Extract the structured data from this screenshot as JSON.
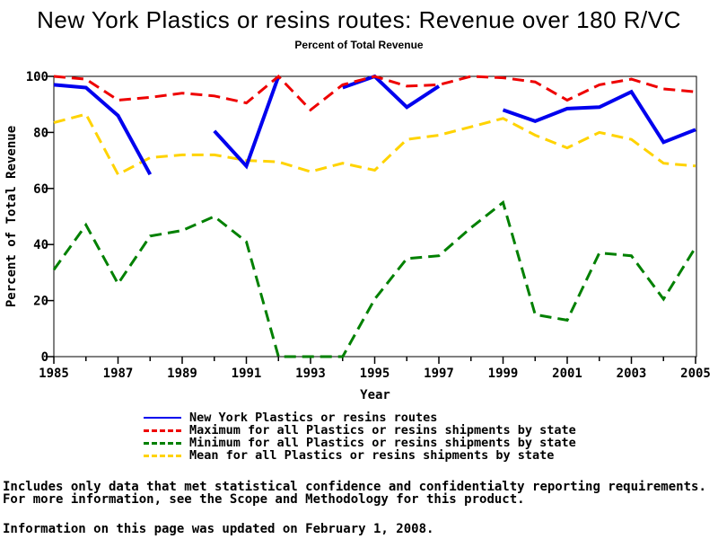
{
  "title": "New York Plastics or resins routes: Revenue over 180 R/VC",
  "subtitle": "Percent of Total Revenue",
  "footnotes": {
    "line1": "Includes only data that met statistical confidence and confidentialty reporting requirements.",
    "line2": "For more information, see the Scope and Methodology for this product.",
    "line3": "Information on this page was updated on February 1, 2008."
  },
  "legend": {
    "items": [
      {
        "label": "New York Plastics or resins routes",
        "color": "#0000EE",
        "style": "solid"
      },
      {
        "label": "Maximum for all Plastics or resins shipments by state",
        "color": "#EE0000",
        "style": "dashed"
      },
      {
        "label": "Minimum for all Plastics or resins shipments by state",
        "color": "#008000",
        "style": "dashed"
      },
      {
        "label": "Mean for all Plastics or resins shipments by state",
        "color": "#FFD300",
        "style": "dashed"
      }
    ]
  },
  "chart_data": {
    "type": "line",
    "title": "New York Plastics or resins routes: Revenue over 180 R/VC",
    "subtitle": "Percent of Total Revenue",
    "xlabel": "Year",
    "ylabel": "Percent of Total Revenue",
    "xlim": [
      1985,
      2005
    ],
    "ylim": [
      0,
      100
    ],
    "x_ticks": [
      1985,
      1987,
      1989,
      1991,
      1993,
      1995,
      1997,
      1999,
      2001,
      2003,
      2005
    ],
    "y_ticks": [
      0,
      20,
      40,
      60,
      80,
      100
    ],
    "grid": false,
    "legend_position": "bottom",
    "years": [
      1985,
      1986,
      1987,
      1988,
      1989,
      1990,
      1991,
      1992,
      1993,
      1994,
      1995,
      1996,
      1997,
      1998,
      1999,
      2000,
      2001,
      2002,
      2003,
      2004,
      2005
    ],
    "series": [
      {
        "key": "new-york",
        "name": "New York Plastics or resins routes",
        "color": "#0000EE",
        "dash": "solid",
        "width": 4,
        "values": [
          97,
          96,
          86,
          65,
          null,
          80.5,
          68,
          100,
          null,
          96,
          100,
          89,
          96.5,
          null,
          88,
          84,
          88.5,
          89,
          94.5,
          76.5,
          81
        ]
      },
      {
        "key": "maximum",
        "name": "Maximum for all Plastics or resins shipments by state",
        "color": "#EE0000",
        "dash": "dashed",
        "width": 3,
        "values": [
          100,
          99,
          91.5,
          92.5,
          94,
          93,
          90.5,
          100,
          88,
          97,
          100,
          96.5,
          97,
          100,
          99.5,
          98,
          91.5,
          97,
          99,
          95.5,
          94.5
        ]
      },
      {
        "key": "minimum",
        "name": "Minimum for all Plastics or resins shipments by state",
        "color": "#008000",
        "dash": "dashed",
        "width": 3,
        "values": [
          31,
          47,
          26,
          43,
          45,
          50,
          41,
          0,
          0,
          0,
          20.5,
          35,
          36,
          46,
          55,
          15,
          13,
          37,
          36,
          20.5,
          39
        ]
      },
      {
        "key": "mean",
        "name": "Mean for all Plastics or resins shipments by state",
        "color": "#FFD300",
        "dash": "dashed",
        "width": 3,
        "values": [
          83.5,
          86.5,
          65,
          71,
          72,
          72,
          70,
          69.5,
          66,
          69,
          66.5,
          77.5,
          79,
          82,
          85,
          79,
          74.5,
          80,
          77.5,
          69,
          68
        ]
      }
    ]
  }
}
